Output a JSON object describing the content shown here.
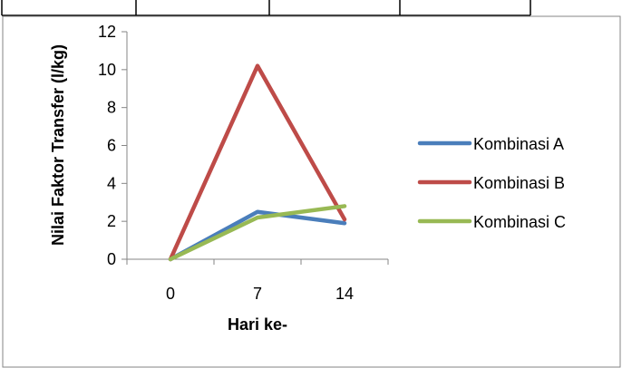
{
  "chart_data": {
    "type": "line",
    "title": "",
    "xlabel": "Hari ke-",
    "ylabel": "Nilai Faktor Transfer (l/kg)",
    "categories": [
      "0",
      "7",
      "14"
    ],
    "ylim": [
      0,
      12
    ],
    "yticks": [
      "0",
      "2",
      "4",
      "6",
      "8",
      "10",
      "12"
    ],
    "grid": false,
    "legend_position": "right",
    "series": [
      {
        "name": "Kombinasi A",
        "color": "#4a7ebb",
        "values": [
          0,
          2.5,
          1.9
        ]
      },
      {
        "name": "Kombinasi B",
        "color": "#be4b48",
        "values": [
          0,
          10.2,
          2.1
        ]
      },
      {
        "name": "Kombinasi C",
        "color": "#98b954",
        "values": [
          0,
          2.2,
          2.8
        ]
      }
    ]
  }
}
